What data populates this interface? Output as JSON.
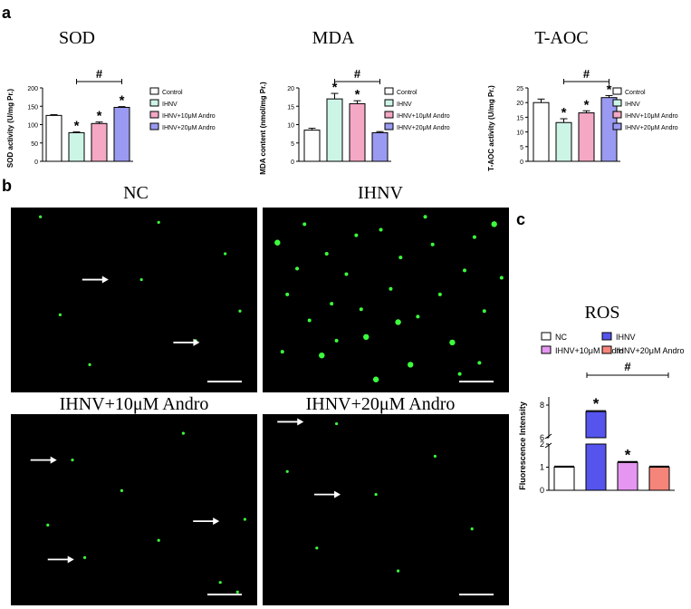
{
  "panel_letters": {
    "a": "a",
    "b": "b",
    "c": "c"
  },
  "colors": {
    "control": "#ffffff",
    "ihnv": "#ccf5e6",
    "andro10": "#f4a8c4",
    "andro20": "#9a9af2",
    "ros_ihnv": "#5555ee",
    "ros_andro10": "#e596f0",
    "ros_andro20": "#f5857a"
  },
  "chart_data": [
    {
      "type": "bar",
      "title": "SOD",
      "ylabel": "SOD activity (U/mg Pr.)",
      "ylim": [
        0,
        200
      ],
      "yticks": [
        0,
        50,
        100,
        150,
        200
      ],
      "categories": [
        "Control",
        "IHNV",
        "IHNV+10μM Andro",
        "IHNV+20μM Andro"
      ],
      "values": [
        125,
        78,
        103,
        147
      ],
      "errors": [
        2,
        2,
        4,
        2
      ],
      "stars": [
        "",
        "*",
        "*",
        "*"
      ],
      "bracket": {
        "from": 1,
        "to": 3,
        "label": "#"
      },
      "legend": [
        "Control",
        "IHNV",
        "IHNV+10μM Andro",
        "IHNV+20μM Andro"
      ]
    },
    {
      "type": "bar",
      "title": "MDA",
      "ylabel": "MDA content (nmol/mg Pr.)",
      "ylim": [
        0,
        20
      ],
      "yticks": [
        0,
        5,
        10,
        15,
        20
      ],
      "categories": [
        "Control",
        "IHNV",
        "IHNV+10μM Andro",
        "IHNV+20μM Andro"
      ],
      "values": [
        8.5,
        17,
        15.7,
        7.8
      ],
      "errors": [
        0.5,
        1.5,
        0.8,
        0.3
      ],
      "stars": [
        "",
        "*",
        "*",
        ""
      ],
      "bracket": {
        "from": 1,
        "to": 3,
        "label": "#"
      },
      "legend": [
        "Control",
        "IHNV",
        "IHNV+10μM Andro",
        "IHNV+20μM Andro"
      ]
    },
    {
      "type": "bar",
      "title": "T-AOC",
      "ylabel": "T-AOC activity (U/mg Pr.)",
      "ylim": [
        0,
        25
      ],
      "yticks": [
        0,
        5,
        10,
        15,
        20,
        25
      ],
      "categories": [
        "Control",
        "IHNV",
        "IHNV+10μM Andro",
        "IHNV+20μM Andro"
      ],
      "values": [
        20,
        13.2,
        16.5,
        21.7
      ],
      "errors": [
        1.2,
        1.3,
        0.7,
        0.7
      ],
      "stars": [
        "",
        "*",
        "*",
        "*"
      ],
      "bracket": {
        "from": 1,
        "to": 3,
        "label": "#"
      },
      "legend": [
        "Control",
        "IHNV",
        "IHNV+10μM Andro",
        "IHNV+20μM Andro"
      ]
    },
    {
      "type": "bar",
      "title": "ROS",
      "ylabel": "Fluorescence Intensity",
      "broken_axis": true,
      "lower_ylim": [
        0,
        2
      ],
      "upper_ylim": [
        6,
        8.5
      ],
      "lower_yticks": [
        0,
        1,
        2
      ],
      "upper_yticks": [
        6,
        8
      ],
      "categories": [
        "NC",
        "IHNV",
        "IHNV+10μM Andro",
        "IHNV+20μM Andro"
      ],
      "values": [
        1.0,
        7.6,
        1.2,
        1.0
      ],
      "errors": [
        0.02,
        0.05,
        0.03,
        0.02
      ],
      "stars": [
        "",
        "*",
        "*",
        ""
      ],
      "bracket": {
        "from": 1,
        "to": 3,
        "label": "#"
      },
      "legend": [
        "NC",
        "IHNV",
        "IHNV+10μM Andro",
        "IHNV+20μM Andro"
      ]
    }
  ],
  "micrographs": [
    {
      "label": "NC",
      "dots": [
        [
          0.53,
          0.39
        ],
        [
          0.2,
          0.58
        ],
        [
          0.87,
          0.25
        ],
        [
          0.12,
          0.05
        ],
        [
          0.6,
          0.08
        ],
        [
          0.75,
          0.72
        ],
        [
          0.32,
          0.85
        ],
        [
          0.93,
          0.56
        ]
      ],
      "arrows": [
        [
          0.4,
          0.39
        ],
        [
          0.77,
          0.73
        ]
      ],
      "scalebar": true
    },
    {
      "label": "IHNV",
      "dots": [
        [
          0.06,
          0.19
        ],
        [
          0.1,
          0.47
        ],
        [
          0.14,
          0.33
        ],
        [
          0.19,
          0.61
        ],
        [
          0.24,
          0.8
        ],
        [
          0.28,
          0.52
        ],
        [
          0.34,
          0.36
        ],
        [
          0.38,
          0.15
        ],
        [
          0.42,
          0.7
        ],
        [
          0.48,
          0.12
        ],
        [
          0.52,
          0.44
        ],
        [
          0.56,
          0.27
        ],
        [
          0.6,
          0.85
        ],
        [
          0.63,
          0.59
        ],
        [
          0.69,
          0.2
        ],
        [
          0.72,
          0.47
        ],
        [
          0.77,
          0.73
        ],
        [
          0.82,
          0.34
        ],
        [
          0.86,
          0.16
        ],
        [
          0.9,
          0.56
        ],
        [
          0.94,
          0.09
        ],
        [
          0.97,
          0.38
        ],
        [
          0.08,
          0.78
        ],
        [
          0.3,
          0.72
        ],
        [
          0.46,
          0.93
        ],
        [
          0.66,
          0.05
        ],
        [
          0.8,
          0.9
        ],
        [
          0.17,
          0.09
        ],
        [
          0.55,
          0.62
        ],
        [
          0.88,
          0.84
        ],
        [
          0.26,
          0.25
        ],
        [
          0.4,
          0.55
        ]
      ],
      "arrows": [],
      "scalebar": true
    },
    {
      "label": "IHNV+10μM Andro",
      "dots": [
        [
          0.25,
          0.24
        ],
        [
          0.95,
          0.55
        ],
        [
          0.3,
          0.75
        ],
        [
          0.7,
          0.1
        ],
        [
          0.45,
          0.4
        ],
        [
          0.85,
          0.88
        ],
        [
          0.15,
          0.58
        ],
        [
          0.6,
          0.66
        ],
        [
          0.92,
          0.93
        ]
      ],
      "arrows": [
        [
          0.19,
          0.24
        ],
        [
          0.85,
          0.56
        ],
        [
          0.26,
          0.76
        ]
      ],
      "scalebar": true
    },
    {
      "label": "IHNV+20μM Andro",
      "dots": [
        [
          0.3,
          0.05
        ],
        [
          0.46,
          0.42
        ],
        [
          0.7,
          0.22
        ],
        [
          0.22,
          0.7
        ],
        [
          0.85,
          0.6
        ],
        [
          0.55,
          0.82
        ],
        [
          0.1,
          0.3
        ]
      ],
      "arrows": [
        [
          0.17,
          0.04
        ],
        [
          0.32,
          0.42
        ]
      ],
      "scalebar": true
    }
  ]
}
